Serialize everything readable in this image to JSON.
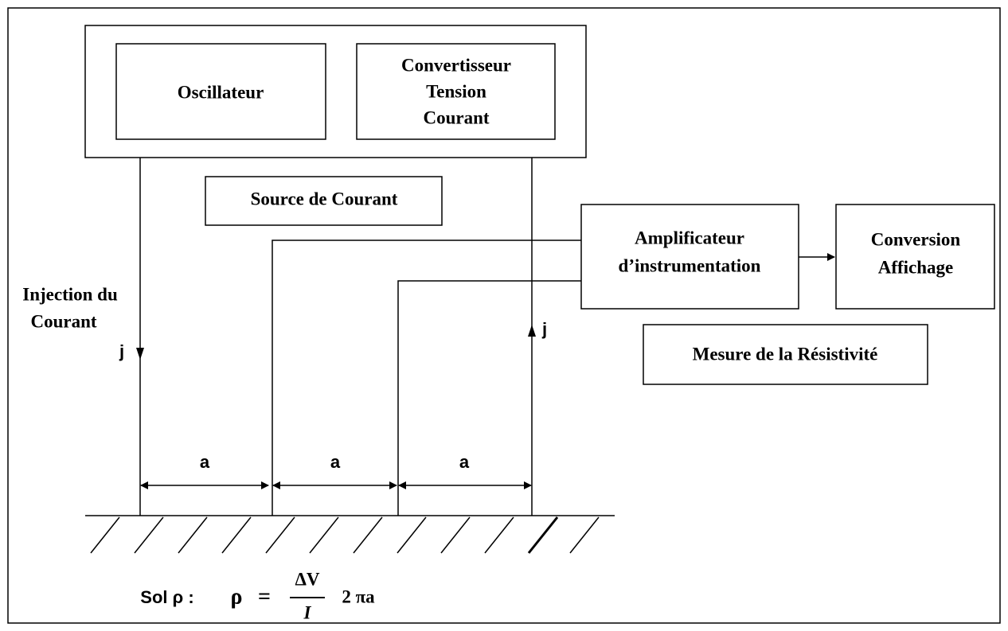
{
  "blocks": {
    "oscillator": "Oscillateur",
    "converter": [
      "Convertisseur",
      "Tension",
      "Courant"
    ],
    "current_source": "Source de Courant",
    "amplifier": [
      "Amplificateur",
      "d’instrumentation"
    ],
    "display": [
      "Conversion",
      "Affichage"
    ],
    "measurement": "Mesure de la Résistivité"
  },
  "injection": [
    "Injection du",
    "Courant"
  ],
  "current_label": "j",
  "spacing_label": "a",
  "soil": {
    "label": "Sol ρ :",
    "formula": {
      "lhs": "ρ",
      "equals": "=",
      "numerator": "ΔV",
      "denominator": "I",
      "factor": "2 πa"
    }
  }
}
